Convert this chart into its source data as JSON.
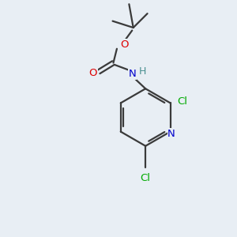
{
  "background_color": "#e8eef4",
  "bond_color": "#3a3a3a",
  "atom_colors": {
    "O": "#dd0000",
    "N": "#0000cc",
    "Cl": "#00aa00",
    "H": "#4a9090",
    "C": "#3a3a3a"
  },
  "figsize": [
    3.0,
    3.0
  ],
  "dpi": 100
}
